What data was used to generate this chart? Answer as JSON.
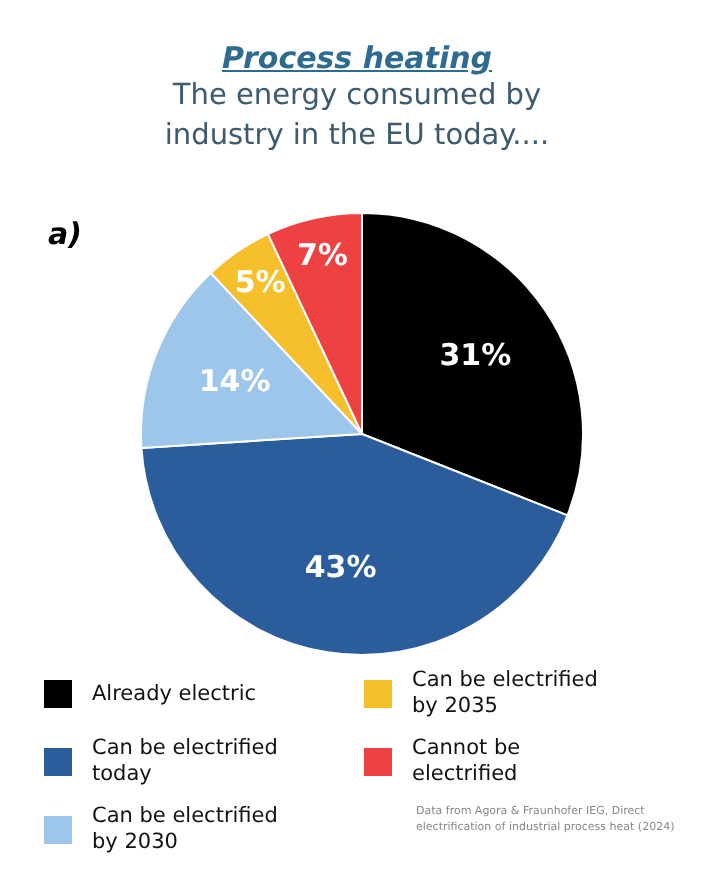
{
  "chart_data": {
    "type": "pie",
    "title": "Process heating",
    "subtitle": "The energy consumed by industry in the EU today....",
    "categories": [
      "Already electric",
      "Can be electrified today",
      "Can be electrified by 2030",
      "Can be electrified by 2035",
      "Cannot be electrified"
    ],
    "values": [
      31,
      43,
      14,
      5,
      7
    ],
    "colors": [
      "#000000",
      "#2b5c9c",
      "#9ec5ea",
      "#f6bf2c",
      "#ee4242"
    ],
    "value_labels": [
      "31%",
      "43%",
      "14%",
      "5%",
      "7%"
    ],
    "legend": "bottom",
    "annotations": [
      "a)",
      "Data from Agora & Fraunhofer IEG, Direct electrification of industrial process heat (2024)"
    ]
  }
}
